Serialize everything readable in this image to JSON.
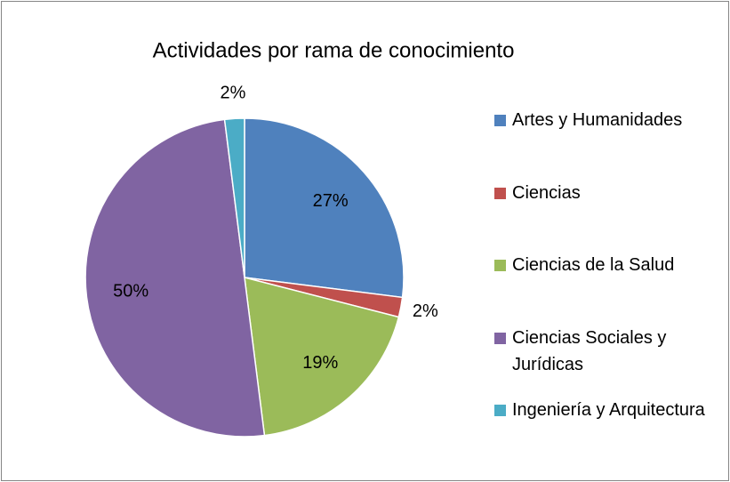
{
  "chart_data": {
    "type": "pie",
    "title": "Actividades por rama de conocimiento",
    "categories": [
      "Artes y Humanidades",
      "Ciencias",
      "Ciencias de la Salud",
      "Ciencias Sociales y Jurídicas",
      "Ingeniería y Arquitectura"
    ],
    "values": [
      27,
      2,
      19,
      50,
      2
    ],
    "value_labels": [
      "27%",
      "2%",
      "19%",
      "50%",
      "2%"
    ],
    "colors": [
      "#4f81bd",
      "#c0504d",
      "#9bbb59",
      "#8064a2",
      "#4bacc6"
    ],
    "legend": "right"
  }
}
